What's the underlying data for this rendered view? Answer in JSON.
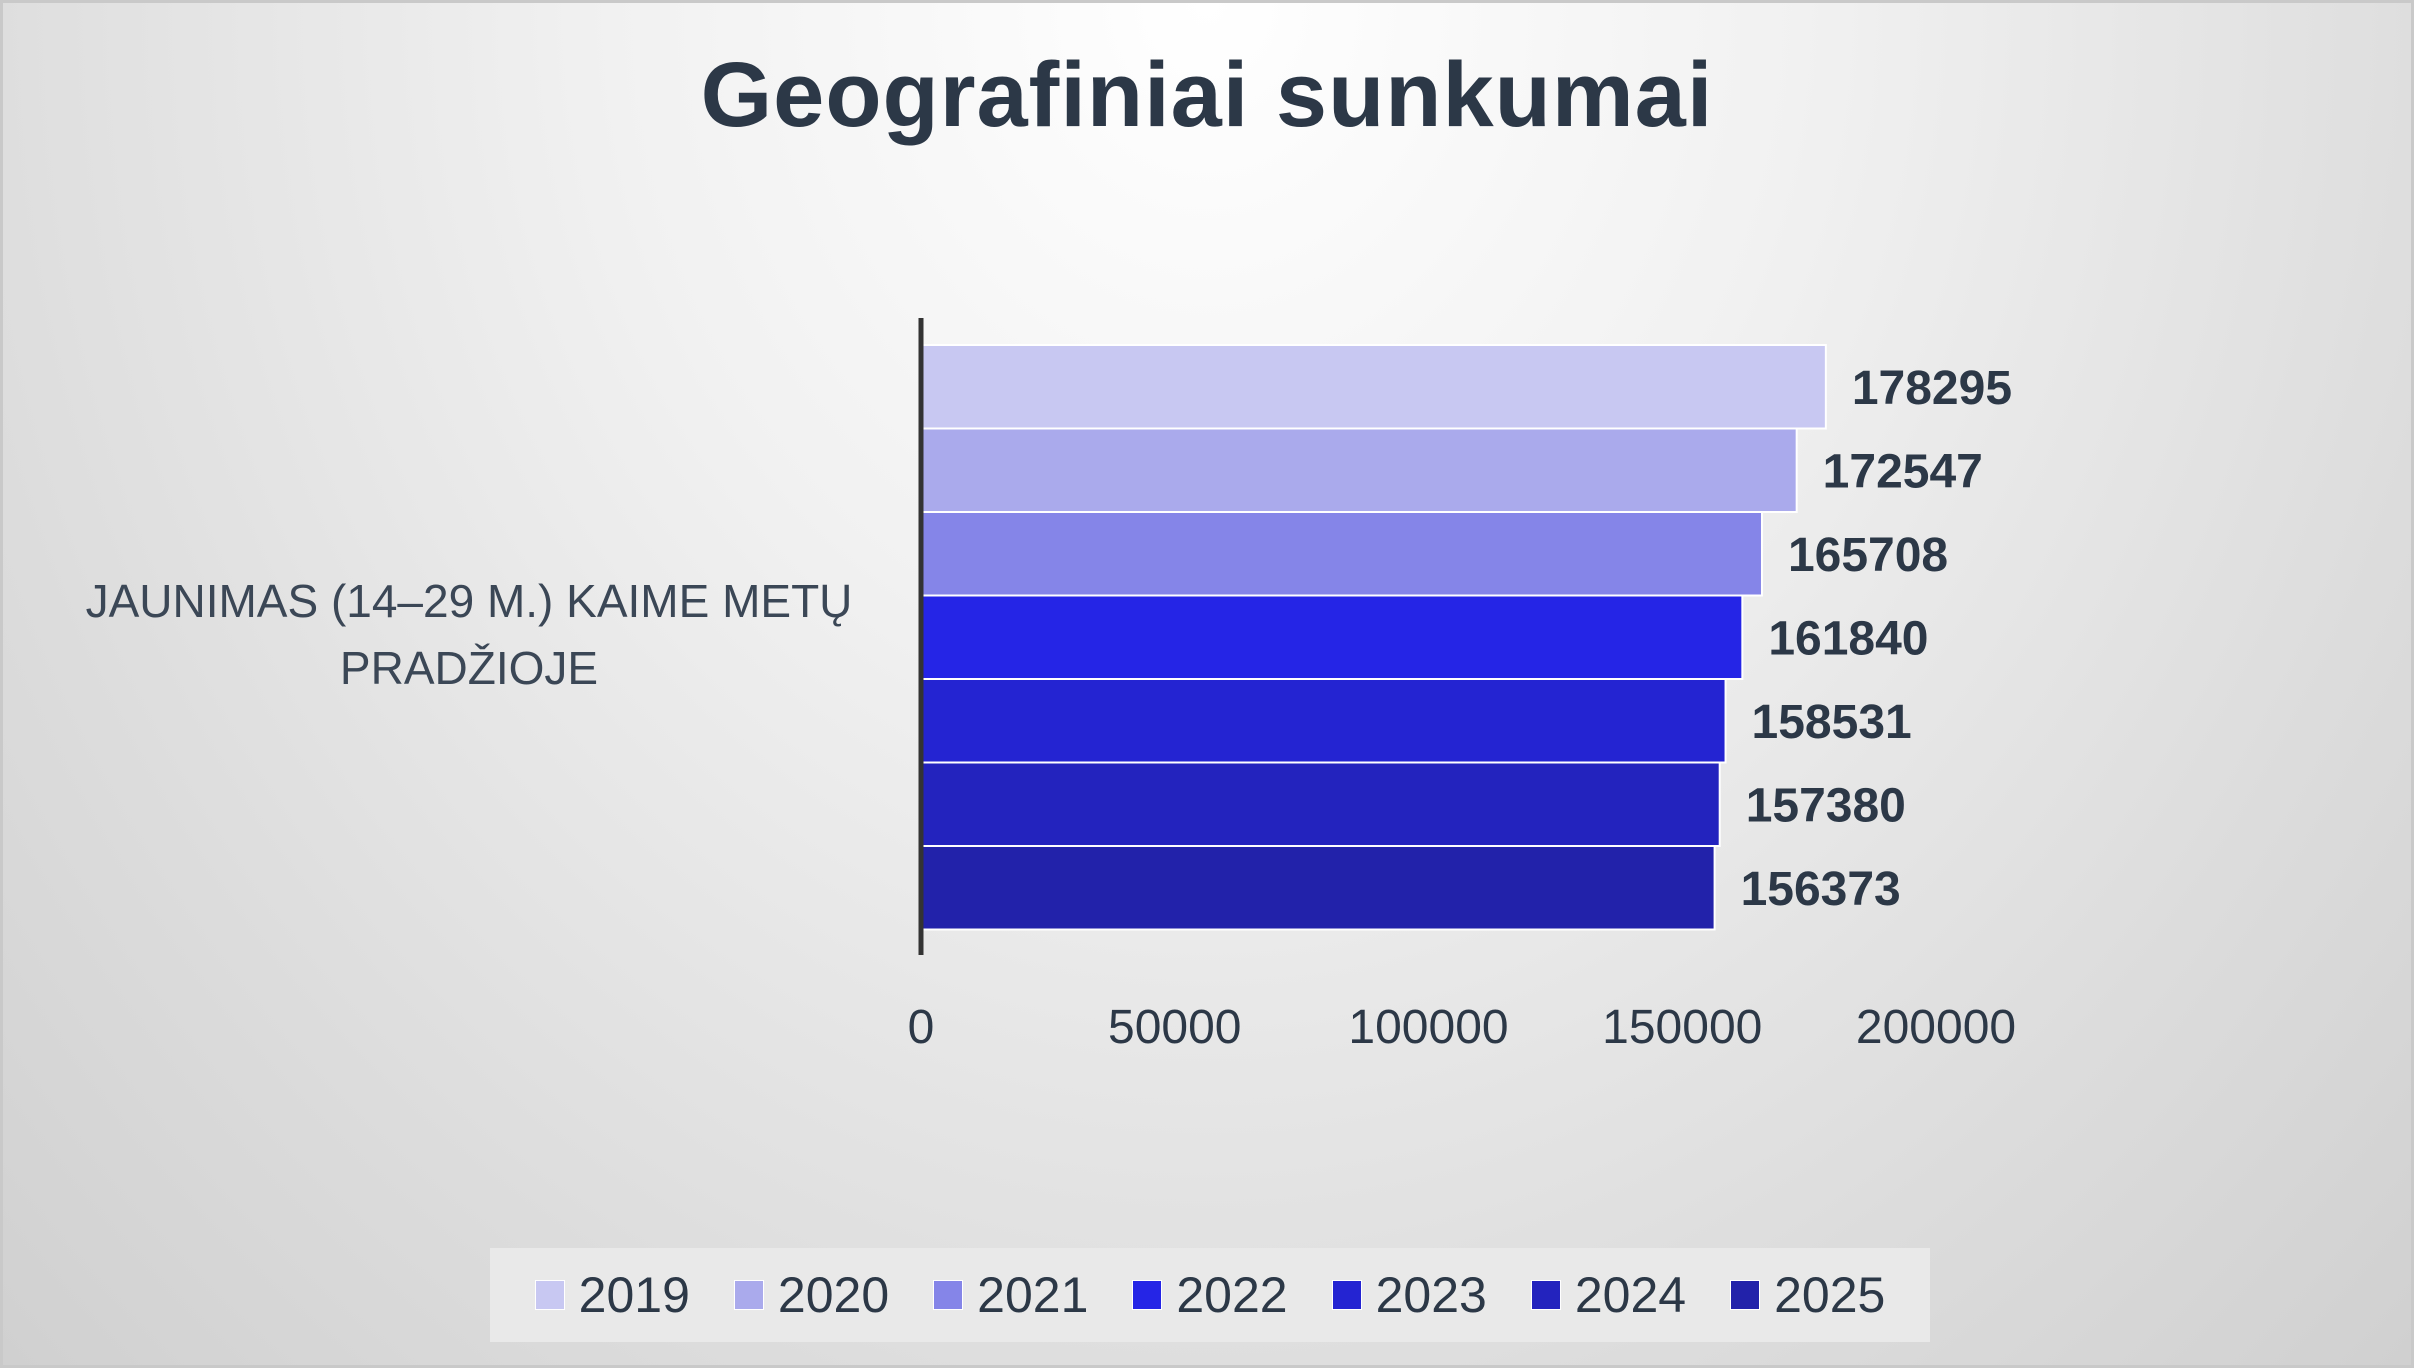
{
  "chart_data": {
    "type": "bar",
    "orientation": "horizontal",
    "title": "Geografiniai sunkumai",
    "categories": [
      "JAUNIMAS (14–29 M.) KAIME METŲ PRADŽIOJE"
    ],
    "series": [
      {
        "name": "2019",
        "values": [
          178295
        ],
        "color": "#c8c8f2"
      },
      {
        "name": "2020",
        "values": [
          172547
        ],
        "color": "#aaaaec"
      },
      {
        "name": "2021",
        "values": [
          165708
        ],
        "color": "#8585e8"
      },
      {
        "name": "2022",
        "values": [
          161840
        ],
        "color": "#2525e6"
      },
      {
        "name": "2023",
        "values": [
          158531
        ],
        "color": "#2424d2"
      },
      {
        "name": "2024",
        "values": [
          157380
        ],
        "color": "#2323be"
      },
      {
        "name": "2025",
        "values": [
          156373
        ],
        "color": "#2222aa"
      }
    ],
    "xlim": [
      0,
      200000
    ],
    "xticks": [
      "0",
      "50000",
      "100000",
      "150000",
      "200000"
    ],
    "data_labels": true,
    "legend": "bottom",
    "grid": false
  },
  "colors": {
    "text": "#2c3847",
    "axis": "#333333",
    "category_text": "#3b4756"
  }
}
